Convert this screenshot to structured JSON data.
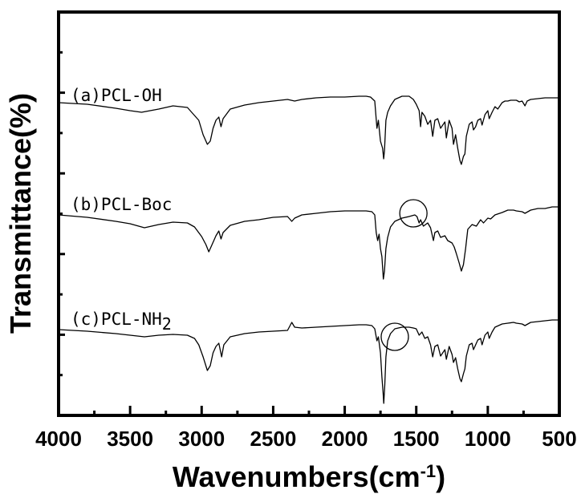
{
  "chart_data": {
    "type": "line",
    "xlabel": "Wavenumbers(cm",
    "xlabel_sup": "-1",
    "xlabel_close": ")",
    "ylabel": "Transmittance(%)",
    "xlim": [
      4000,
      500
    ],
    "x_reversed": true,
    "y_ticks_labeled": false,
    "grid": false,
    "xticks": [
      4000,
      3500,
      3000,
      2500,
      2000,
      1500,
      1000,
      500
    ],
    "line_color": "#000000",
    "series": [
      {
        "name": "(a)PCL-OH",
        "label_parts": [
          "(a)PCL-OH"
        ],
        "points": [
          [
            4000,
            128
          ],
          [
            3800,
            130
          ],
          [
            3600,
            135
          ],
          [
            3500,
            138
          ],
          [
            3420,
            140
          ],
          [
            3300,
            136
          ],
          [
            3200,
            132
          ],
          [
            3100,
            134
          ],
          [
            3020,
            150
          ],
          [
            2990,
            168
          ],
          [
            2960,
            180
          ],
          [
            2940,
            176
          ],
          [
            2920,
            160
          ],
          [
            2900,
            150
          ],
          [
            2880,
            146
          ],
          [
            2865,
            158
          ],
          [
            2850,
            148
          ],
          [
            2800,
            136
          ],
          [
            2700,
            131
          ],
          [
            2600,
            128
          ],
          [
            2500,
            126
          ],
          [
            2400,
            124
          ],
          [
            2350,
            126
          ],
          [
            2300,
            124
          ],
          [
            2200,
            122
          ],
          [
            2100,
            121
          ],
          [
            2000,
            121
          ],
          [
            1900,
            120
          ],
          [
            1850,
            120
          ],
          [
            1820,
            121
          ],
          [
            1790,
            126
          ],
          [
            1775,
            160
          ],
          [
            1765,
            150
          ],
          [
            1750,
            176
          ],
          [
            1735,
            185
          ],
          [
            1728,
            198
          ],
          [
            1722,
            188
          ],
          [
            1712,
            150
          ],
          [
            1700,
            140
          ],
          [
            1680,
            132
          ],
          [
            1650,
            124
          ],
          [
            1600,
            120
          ],
          [
            1550,
            120
          ],
          [
            1520,
            124
          ],
          [
            1500,
            130
          ],
          [
            1480,
            138
          ],
          [
            1470,
            158
          ],
          [
            1460,
            140
          ],
          [
            1440,
            145
          ],
          [
            1420,
            155
          ],
          [
            1400,
            150
          ],
          [
            1385,
            170
          ],
          [
            1370,
            150
          ],
          [
            1350,
            148
          ],
          [
            1330,
            160
          ],
          [
            1300,
            152
          ],
          [
            1290,
            172
          ],
          [
            1270,
            150
          ],
          [
            1250,
            160
          ],
          [
            1240,
            180
          ],
          [
            1225,
            168
          ],
          [
            1210,
            185
          ],
          [
            1195,
            200
          ],
          [
            1185,
            205
          ],
          [
            1170,
            195
          ],
          [
            1160,
            192
          ],
          [
            1150,
            170
          ],
          [
            1130,
            155
          ],
          [
            1110,
            152
          ],
          [
            1100,
            162
          ],
          [
            1085,
            158
          ],
          [
            1070,
            150
          ],
          [
            1050,
            148
          ],
          [
            1040,
            156
          ],
          [
            1020,
            143
          ],
          [
            1000,
            138
          ],
          [
            990,
            148
          ],
          [
            970,
            140
          ],
          [
            950,
            133
          ],
          [
            930,
            136
          ],
          [
            900,
            128
          ],
          [
            880,
            126
          ],
          [
            860,
            126
          ],
          [
            840,
            125
          ],
          [
            800,
            125
          ],
          [
            780,
            127
          ],
          [
            760,
            126
          ],
          [
            740,
            132
          ],
          [
            725,
            126
          ],
          [
            700,
            124
          ],
          [
            650,
            123
          ],
          [
            600,
            122
          ],
          [
            550,
            122
          ],
          [
            500,
            122
          ]
        ]
      },
      {
        "name": "(b)PCL-Boc",
        "label_parts": [
          "(b)PCL-Boc"
        ],
        "points": [
          [
            4000,
            268
          ],
          [
            3800,
            271
          ],
          [
            3600,
            276
          ],
          [
            3500,
            279
          ],
          [
            3400,
            284
          ],
          [
            3300,
            280
          ],
          [
            3200,
            277
          ],
          [
            3100,
            278
          ],
          [
            3050,
            283
          ],
          [
            3000,
            295
          ],
          [
            2970,
            305
          ],
          [
            2950,
            314
          ],
          [
            2930,
            306
          ],
          [
            2900,
            294
          ],
          [
            2880,
            288
          ],
          [
            2865,
            298
          ],
          [
            2850,
            290
          ],
          [
            2800,
            281
          ],
          [
            2700,
            276
          ],
          [
            2600,
            274
          ],
          [
            2500,
            271
          ],
          [
            2400,
            270
          ],
          [
            2370,
            276
          ],
          [
            2350,
            272
          ],
          [
            2300,
            268
          ],
          [
            2200,
            266
          ],
          [
            2100,
            264
          ],
          [
            2000,
            263
          ],
          [
            1900,
            263
          ],
          [
            1850,
            263
          ],
          [
            1810,
            264
          ],
          [
            1790,
            268
          ],
          [
            1780,
            290
          ],
          [
            1770,
            300
          ],
          [
            1760,
            292
          ],
          [
            1750,
            310
          ],
          [
            1740,
            320
          ],
          [
            1730,
            348
          ],
          [
            1722,
            338
          ],
          [
            1712,
            310
          ],
          [
            1700,
            296
          ],
          [
            1680,
            283
          ],
          [
            1650,
            276
          ],
          [
            1600,
            272
          ],
          [
            1550,
            270
          ],
          [
            1510,
            268
          ],
          [
            1495,
            270
          ],
          [
            1480,
            278
          ],
          [
            1470,
            274
          ],
          [
            1450,
            282
          ],
          [
            1420,
            278
          ],
          [
            1400,
            284
          ],
          [
            1380,
            300
          ],
          [
            1370,
            290
          ],
          [
            1350,
            288
          ],
          [
            1330,
            296
          ],
          [
            1300,
            294
          ],
          [
            1280,
            300
          ],
          [
            1250,
            303
          ],
          [
            1235,
            308
          ],
          [
            1220,
            316
          ],
          [
            1200,
            328
          ],
          [
            1185,
            338
          ],
          [
            1170,
            330
          ],
          [
            1155,
            310
          ],
          [
            1140,
            286
          ],
          [
            1110,
            280
          ],
          [
            1080,
            282
          ],
          [
            1050,
            274
          ],
          [
            1030,
            278
          ],
          [
            1000,
            272
          ],
          [
            980,
            273
          ],
          [
            950,
            268
          ],
          [
            900,
            265
          ],
          [
            860,
            262
          ],
          [
            820,
            262
          ],
          [
            800,
            263
          ],
          [
            760,
            264
          ],
          [
            740,
            266
          ],
          [
            700,
            262
          ],
          [
            650,
            260
          ],
          [
            600,
            260
          ],
          [
            550,
            258
          ],
          [
            500,
            258
          ]
        ]
      },
      {
        "name": "(c)PCL-NH",
        "label_parts": [
          "(c)PCL-NH",
          "2"
        ],
        "points": [
          [
            4000,
            411
          ],
          [
            3800,
            413
          ],
          [
            3600,
            416
          ],
          [
            3500,
            418
          ],
          [
            3400,
            420
          ],
          [
            3300,
            418
          ],
          [
            3200,
            417
          ],
          [
            3100,
            418
          ],
          [
            3050,
            422
          ],
          [
            3020,
            430
          ],
          [
            2990,
            445
          ],
          [
            2960,
            462
          ],
          [
            2940,
            456
          ],
          [
            2920,
            440
          ],
          [
            2900,
            432
          ],
          [
            2880,
            428
          ],
          [
            2860,
            445
          ],
          [
            2845,
            430
          ],
          [
            2800,
            420
          ],
          [
            2700,
            416
          ],
          [
            2600,
            414
          ],
          [
            2500,
            413
          ],
          [
            2400,
            412
          ],
          [
            2370,
            402
          ],
          [
            2350,
            408
          ],
          [
            2300,
            409
          ],
          [
            2200,
            408
          ],
          [
            2100,
            407
          ],
          [
            2000,
            406
          ],
          [
            1900,
            405
          ],
          [
            1850,
            405
          ],
          [
            1810,
            406
          ],
          [
            1790,
            410
          ],
          [
            1775,
            425
          ],
          [
            1765,
            420
          ],
          [
            1750,
            440
          ],
          [
            1740,
            470
          ],
          [
            1732,
            490
          ],
          [
            1727,
            503
          ],
          [
            1720,
            480
          ],
          [
            1712,
            445
          ],
          [
            1700,
            425
          ],
          [
            1680,
            416
          ],
          [
            1650,
            410
          ],
          [
            1600,
            408
          ],
          [
            1550,
            408
          ],
          [
            1520,
            409
          ],
          [
            1500,
            410
          ],
          [
            1480,
            418
          ],
          [
            1460,
            414
          ],
          [
            1440,
            422
          ],
          [
            1420,
            420
          ],
          [
            1400,
            430
          ],
          [
            1385,
            445
          ],
          [
            1370,
            432
          ],
          [
            1350,
            430
          ],
          [
            1330,
            444
          ],
          [
            1300,
            436
          ],
          [
            1290,
            448
          ],
          [
            1270,
            432
          ],
          [
            1250,
            442
          ],
          [
            1240,
            452
          ],
          [
            1225,
            446
          ],
          [
            1210,
            460
          ],
          [
            1195,
            472
          ],
          [
            1185,
            476
          ],
          [
            1170,
            466
          ],
          [
            1160,
            460
          ],
          [
            1150,
            444
          ],
          [
            1130,
            430
          ],
          [
            1110,
            428
          ],
          [
            1100,
            436
          ],
          [
            1085,
            430
          ],
          [
            1070,
            424
          ],
          [
            1050,
            422
          ],
          [
            1040,
            430
          ],
          [
            1020,
            418
          ],
          [
            1000,
            414
          ],
          [
            990,
            422
          ],
          [
            970,
            414
          ],
          [
            950,
            408
          ],
          [
            900,
            404
          ],
          [
            860,
            403
          ],
          [
            820,
            402
          ],
          [
            800,
            403
          ],
          [
            760,
            404
          ],
          [
            740,
            406
          ],
          [
            700,
            402
          ],
          [
            650,
            401
          ],
          [
            600,
            400
          ],
          [
            550,
            399
          ],
          [
            500,
            399
          ]
        ]
      }
    ],
    "annotations": [
      {
        "type": "circle",
        "series": "(b)PCL-Boc",
        "x": 1520
      },
      {
        "type": "circle",
        "series": "(c)PCL-NH2",
        "x": 1650
      }
    ]
  }
}
